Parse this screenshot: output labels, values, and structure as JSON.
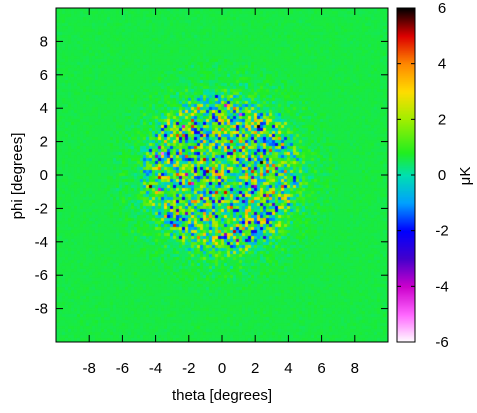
{
  "chart_data": {
    "type": "heatmap",
    "title": "",
    "xlabel": "theta [degrees]",
    "ylabel": "phi [degrees]",
    "xlim": [
      -10,
      10
    ],
    "ylim": [
      -10,
      10
    ],
    "xticks": [
      "-8",
      "-6",
      "-4",
      "-2",
      "0",
      "2",
      "4",
      "6",
      "8"
    ],
    "xtick_values": [
      -8,
      -6,
      -4,
      -2,
      0,
      2,
      4,
      6,
      8
    ],
    "yticks": [
      "8",
      "6",
      "4",
      "2",
      "0",
      "-2",
      "-4",
      "-6",
      "-8"
    ],
    "ytick_values": [
      8,
      6,
      4,
      2,
      0,
      -2,
      -4,
      -6,
      -8
    ],
    "colorbar": {
      "label": "μK",
      "range": [
        -6,
        6
      ],
      "ticks": [
        "6",
        "4",
        "2",
        "0",
        "-2",
        "-4",
        "-6"
      ],
      "tick_values": [
        6,
        4,
        2,
        0,
        -2,
        -4,
        -6
      ],
      "colormap": [
        {
          "value": -6,
          "color": "#ffffff"
        },
        {
          "value": -5,
          "color": "#ff66ff"
        },
        {
          "value": -4,
          "color": "#cc00cc"
        },
        {
          "value": -3,
          "color": "#4400cc"
        },
        {
          "value": -2,
          "color": "#0000ff"
        },
        {
          "value": -1,
          "color": "#00a0ff"
        },
        {
          "value": 0,
          "color": "#00e0b0"
        },
        {
          "value": 0.8,
          "color": "#20ee20"
        },
        {
          "value": 2,
          "color": "#a0ee00"
        },
        {
          "value": 3,
          "color": "#ffdd00"
        },
        {
          "value": 4,
          "color": "#ff8800"
        },
        {
          "value": 5,
          "color": "#dd0000"
        },
        {
          "value": 6,
          "color": "#000000"
        }
      ]
    },
    "background_value": 0.6,
    "noise_region": {
      "center": [
        0,
        0
      ],
      "radius_deg": 5.2
    },
    "grid": false
  }
}
